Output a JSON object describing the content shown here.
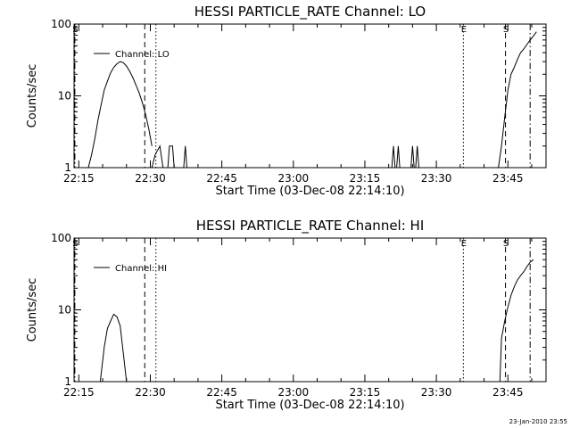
{
  "colors": {
    "background": "#ffffff",
    "foreground": "#000000"
  },
  "footer": "23-Jan-2010 23:55",
  "chart_data": [
    {
      "type": "line",
      "title": "HESSI PARTICLE_RATE Channel: LO",
      "xlabel": "Start Time (03-Dec-08 22:14:10)",
      "ylabel": "Counts/sec",
      "yscale": "log",
      "ylim": [
        1,
        100
      ],
      "xlim": [
        "22:14",
        "23:53"
      ],
      "x_ticks": [
        "22:15",
        "22:30",
        "22:45",
        "23:00",
        "23:15",
        "23:30",
        "23:45"
      ],
      "y_ticks": [
        "1",
        "10",
        "100"
      ],
      "legend": {
        "entries": [
          "Channel: LO"
        ],
        "placement": "top-left"
      },
      "grid": false,
      "series": [
        {
          "name": "Channel: LO",
          "x": [
            "22:17:00",
            "22:17:40",
            "22:18:20",
            "22:19:00",
            "22:19:40",
            "22:20:20",
            "22:21:00",
            "22:21:40",
            "22:22:20",
            "22:23:00",
            "22:23:40",
            "22:24:20",
            "22:25:00",
            "22:25:40",
            "22:26:20",
            "22:27:00",
            "22:27:40",
            "22:28:20",
            "22:29:00",
            "22:29:40",
            "22:30:20"
          ],
          "y": [
            1,
            1.5,
            2.5,
            4.5,
            7.5,
            12,
            16,
            21,
            25,
            28,
            30,
            29,
            26,
            22,
            18,
            14,
            11,
            8,
            5.5,
            3.5,
            2
          ]
        },
        {
          "name": "",
          "x": [
            "22:30:20",
            "22:31:00",
            "22:32:00",
            "22:32:40"
          ],
          "y": [
            1,
            1.5,
            2,
            1
          ]
        },
        {
          "name": "",
          "x": [
            "22:33:40",
            "22:34:00",
            "22:34:40",
            "22:35:00"
          ],
          "y": [
            1,
            2,
            2,
            1
          ]
        },
        {
          "name": "",
          "x": [
            "22:37:00",
            "22:37:20",
            "22:37:40"
          ],
          "y": [
            1,
            2,
            1
          ]
        },
        {
          "name": "",
          "x": [
            "23:20:40",
            "23:21:00",
            "23:21:20"
          ],
          "y": [
            1,
            2,
            1
          ]
        },
        {
          "name": "",
          "x": [
            "23:21:40",
            "23:22:00",
            "23:22:20"
          ],
          "y": [
            1,
            2,
            1
          ]
        },
        {
          "name": "",
          "x": [
            "23:24:40",
            "23:25:00",
            "23:25:20",
            "23:25:40",
            "23:26:00",
            "23:26:20"
          ],
          "y": [
            1,
            2,
            1,
            1,
            2,
            1
          ]
        },
        {
          "name": "",
          "x": [
            "23:43:00",
            "23:43:40",
            "23:44:20",
            "23:45:00",
            "23:45:40",
            "23:46:20",
            "23:47:00",
            "23:47:40",
            "23:48:20",
            "23:49:00",
            "23:49:40",
            "23:50:20",
            "23:51:00"
          ],
          "y": [
            1,
            2,
            5,
            12,
            20,
            25,
            32,
            40,
            45,
            52,
            60,
            68,
            78
          ]
        }
      ],
      "markers": [
        {
          "label": "S",
          "x": "22:14:10",
          "style": "dash-dot"
        },
        {
          "label": "",
          "x": "22:28:50",
          "style": "dashed"
        },
        {
          "label": "",
          "x": "22:31:10",
          "style": "dotted"
        },
        {
          "label": "E",
          "x": "23:35:40",
          "style": "dotted"
        },
        {
          "label": "S",
          "x": "23:44:30",
          "style": "dashed"
        },
        {
          "label": "",
          "x": "23:49:40",
          "style": "dash-dot"
        }
      ]
    },
    {
      "type": "line",
      "title": "HESSI PARTICLE_RATE Channel: HI",
      "xlabel": "Start Time (03-Dec-08 22:14:10)",
      "ylabel": "Counts/sec",
      "yscale": "log",
      "ylim": [
        1,
        100
      ],
      "xlim": [
        "22:14",
        "23:53"
      ],
      "x_ticks": [
        "22:15",
        "22:30",
        "22:45",
        "23:00",
        "23:15",
        "23:30",
        "23:45"
      ],
      "y_ticks": [
        "1",
        "10",
        "100"
      ],
      "legend": {
        "entries": [
          "Channel: HI"
        ],
        "placement": "top-left"
      },
      "grid": false,
      "series": [
        {
          "name": "Channel: HI",
          "x": [
            "22:19:30",
            "22:20:20",
            "22:21:00",
            "22:21:40",
            "22:22:20",
            "22:23:00",
            "22:23:40",
            "22:24:20",
            "22:25:00"
          ],
          "y": [
            1,
            3,
            5.5,
            7,
            8.7,
            8,
            6,
            2.5,
            1
          ]
        },
        {
          "name": "",
          "x": [
            "23:43:20",
            "23:43:40",
            "23:44:20",
            "23:45:00",
            "23:45:40",
            "23:46:20",
            "23:47:00",
            "23:47:40",
            "23:48:20",
            "23:49:00",
            "23:49:40",
            "23:50:20"
          ],
          "y": [
            1,
            4,
            7,
            11,
            16,
            21,
            26,
            30,
            34,
            40,
            46,
            50
          ]
        }
      ],
      "markers": [
        {
          "label": "S",
          "x": "22:14:10",
          "style": "dash-dot"
        },
        {
          "label": "",
          "x": "22:28:50",
          "style": "dashed"
        },
        {
          "label": "",
          "x": "22:31:10",
          "style": "dotted"
        },
        {
          "label": "E",
          "x": "23:35:40",
          "style": "dotted"
        },
        {
          "label": "S",
          "x": "23:44:30",
          "style": "dashed"
        },
        {
          "label": "",
          "x": "23:49:40",
          "style": "dash-dot"
        }
      ]
    }
  ]
}
